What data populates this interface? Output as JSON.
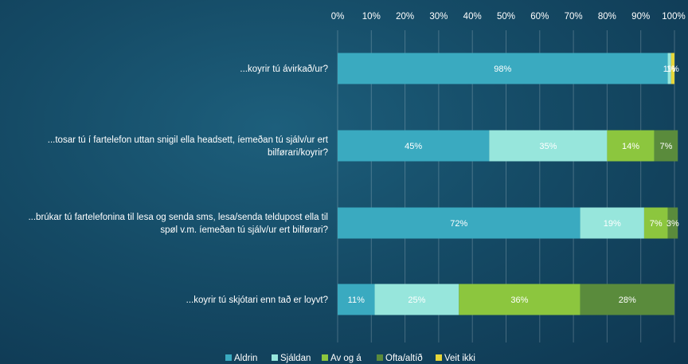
{
  "chart_data": {
    "type": "bar",
    "orientation": "horizontal",
    "stacked": true,
    "xlim": [
      0,
      100
    ],
    "x_ticks": [
      "0%",
      "10%",
      "20%",
      "30%",
      "40%",
      "50%",
      "60%",
      "70%",
      "80%",
      "90%",
      "100%"
    ],
    "grid": true,
    "legend_position": "bottom",
    "categories": [
      "...koyrir tú ávirkað/ur?",
      "...tosar tú í fartelefon uttan snigil ella headsett, ímeðan tú sjálv/ur ert bilførari/koyrir?",
      "...brúkar tú fartelefonina til lesa og senda sms, lesa/senda teldupost ella til spøl v.m. íemeðan tú sjálv/ur ert bilførari?",
      "...koyrir tú skjótari enn tað er loyvt?"
    ],
    "category_lines": [
      [
        "...koyrir tú ávirkað/ur?"
      ],
      [
        "...tosar tú í fartelefon uttan snigil ella headsett, íemeðan tú sjálv/ur ert",
        "bilførari/koyrir?"
      ],
      [
        "...brúkar tú fartelefonina til lesa og senda sms, lesa/senda teldupost ella til",
        "spøl v.m. íemeðan tú sjálv/ur ert bilførari?"
      ],
      [
        "...koyrir tú skjótari enn tað er loyvt?"
      ]
    ],
    "series": [
      {
        "name": "Aldrin",
        "color": "#3aaac0",
        "values": [
          98,
          45,
          72,
          11
        ],
        "labels": [
          "98%",
          "45%",
          "72%",
          "11%"
        ]
      },
      {
        "name": "Sjáldan",
        "color": "#97e6dc",
        "values": [
          1,
          35,
          19,
          25
        ],
        "labels": [
          "1%",
          "35%",
          "19%",
          "25%"
        ]
      },
      {
        "name": "Av og á",
        "color": "#8cc63e",
        "values": [
          0,
          14,
          7,
          36
        ],
        "labels": [
          "",
          "14%",
          "7%",
          "36%"
        ]
      },
      {
        "name": "Ofta/altíð",
        "color": "#5a8b3c",
        "values": [
          0,
          7,
          3,
          28
        ],
        "labels": [
          "",
          "7%",
          "3%",
          "28%"
        ]
      },
      {
        "name": "Veit ikki",
        "color": "#e6d63a",
        "values": [
          1,
          0,
          0,
          0
        ],
        "labels": [
          "1%",
          "",
          "",
          ""
        ]
      }
    ]
  }
}
